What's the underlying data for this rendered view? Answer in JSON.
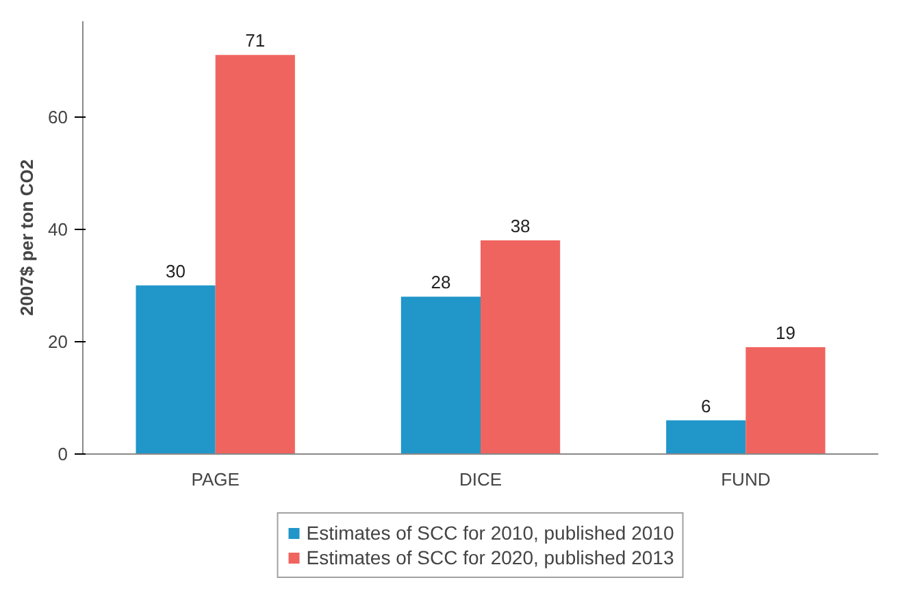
{
  "chart_data": {
    "type": "bar",
    "ylabel": "2007$ per ton CO2",
    "categories": [
      "PAGE",
      "DICE",
      "FUND"
    ],
    "series": [
      {
        "name": "Estimates of SCC for 2010, published 2010",
        "color": "#2196c9",
        "values": [
          30,
          28,
          6
        ]
      },
      {
        "name": "Estimates of SCC for 2020, published 2013",
        "color": "#f0645f",
        "values": [
          71,
          38,
          19
        ]
      }
    ],
    "ylim": [
      0,
      77
    ],
    "yticks": [
      0,
      20,
      40,
      60
    ],
    "grid": false,
    "legend": "bottom",
    "data_labels": true
  }
}
